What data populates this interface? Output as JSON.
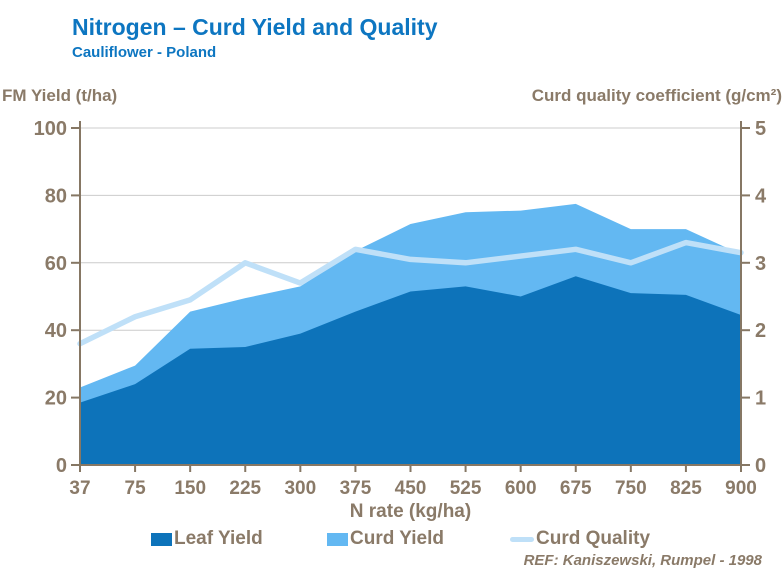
{
  "header": {
    "title": "Nitrogen – Curd Yield and Quality",
    "subtitle": "Cauliflower - Poland"
  },
  "footer": {
    "ref": "REF: Kaniszewski, Rumpel - 1998"
  },
  "colors": {
    "title_blue": "#0d76c1",
    "label_brown": "#8a7a68",
    "axis_line": "#867764",
    "gridline": "#cccccc",
    "leaf_area": "#0d73ba",
    "curd_area": "#63b8f2",
    "quality_line": "#bfe0f8",
    "background": "#ffffff"
  },
  "chart_data": {
    "type": "area",
    "subtype": "stacked-area with overlay line on secondary axis",
    "title": "Nitrogen – Curd Yield and Quality",
    "subtitle": "Cauliflower - Poland",
    "categories": [
      37,
      75,
      150,
      225,
      300,
      375,
      450,
      525,
      600,
      675,
      750,
      825,
      900
    ],
    "x_axis": {
      "label": "N rate (kg/ha)"
    },
    "left_axis": {
      "label": "FM Yield (t/ha)",
      "min": 0,
      "max": 100,
      "ticks": [
        0,
        20,
        40,
        60,
        80,
        100
      ]
    },
    "right_axis": {
      "label": "Curd quality coefficient (g/cm²)",
      "min": 0,
      "max": 5,
      "ticks": [
        0,
        1,
        2,
        3,
        4,
        5
      ]
    },
    "grid": true,
    "legend_position": "bottom",
    "series": [
      {
        "name": "Leaf Yield",
        "type": "area-stacked",
        "axis": "left",
        "color": "#0d73ba",
        "values": [
          18.5,
          24,
          34.5,
          35,
          39,
          45.5,
          51.5,
          53,
          50,
          56,
          51,
          50.5,
          44.5
        ]
      },
      {
        "name": "Curd Yield",
        "type": "area-stacked",
        "axis": "left",
        "color": "#63b8f2",
        "values": [
          4.5,
          5.5,
          11,
          14.5,
          14,
          18,
          20,
          22,
          25.5,
          21.5,
          19,
          19.5,
          18
        ],
        "stack_top_total": [
          23,
          29.5,
          45.5,
          49.5,
          53,
          63.5,
          71.5,
          75,
          75.5,
          77.5,
          70,
          70,
          62.5
        ]
      },
      {
        "name": "Curd Quality",
        "type": "line",
        "axis": "right",
        "color": "#bfe0f8",
        "values": [
          1.8,
          2.2,
          2.45,
          3.0,
          2.7,
          3.2,
          3.05,
          3.0,
          3.1,
          3.2,
          3.0,
          3.3,
          3.15
        ]
      }
    ]
  }
}
